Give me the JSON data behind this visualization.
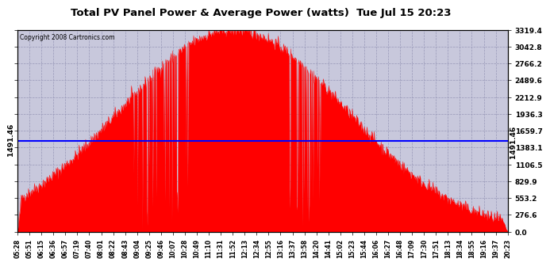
{
  "title": "Total PV Panel Power & Average Power (watts)  Tue Jul 15 20:23",
  "copyright": "Copyright 2008 Cartronics.com",
  "avg_power": 1491.46,
  "y_max": 3319.4,
  "y_ticks": [
    0.0,
    276.6,
    553.2,
    829.9,
    1106.5,
    1383.1,
    1659.7,
    1936.3,
    2212.9,
    2489.6,
    2766.2,
    3042.8,
    3319.4
  ],
  "fill_color": "#FF0000",
  "line_color": "#0000FF",
  "bg_color": "#FFFFFF",
  "plot_bg_color": "#C8C8DC",
  "grid_color": "#9898B8",
  "title_color": "#000000",
  "x_labels": [
    "05:28",
    "05:51",
    "06:15",
    "06:36",
    "06:57",
    "07:19",
    "07:40",
    "08:01",
    "08:22",
    "08:43",
    "09:04",
    "09:25",
    "09:46",
    "10:07",
    "10:28",
    "10:49",
    "11:10",
    "11:31",
    "11:52",
    "12:13",
    "12:34",
    "12:55",
    "13:16",
    "13:37",
    "13:58",
    "14:20",
    "14:41",
    "15:02",
    "15:23",
    "15:44",
    "16:06",
    "16:27",
    "16:48",
    "17:09",
    "17:30",
    "17:51",
    "18:13",
    "18:34",
    "18:55",
    "19:16",
    "19:37",
    "20:23"
  ]
}
